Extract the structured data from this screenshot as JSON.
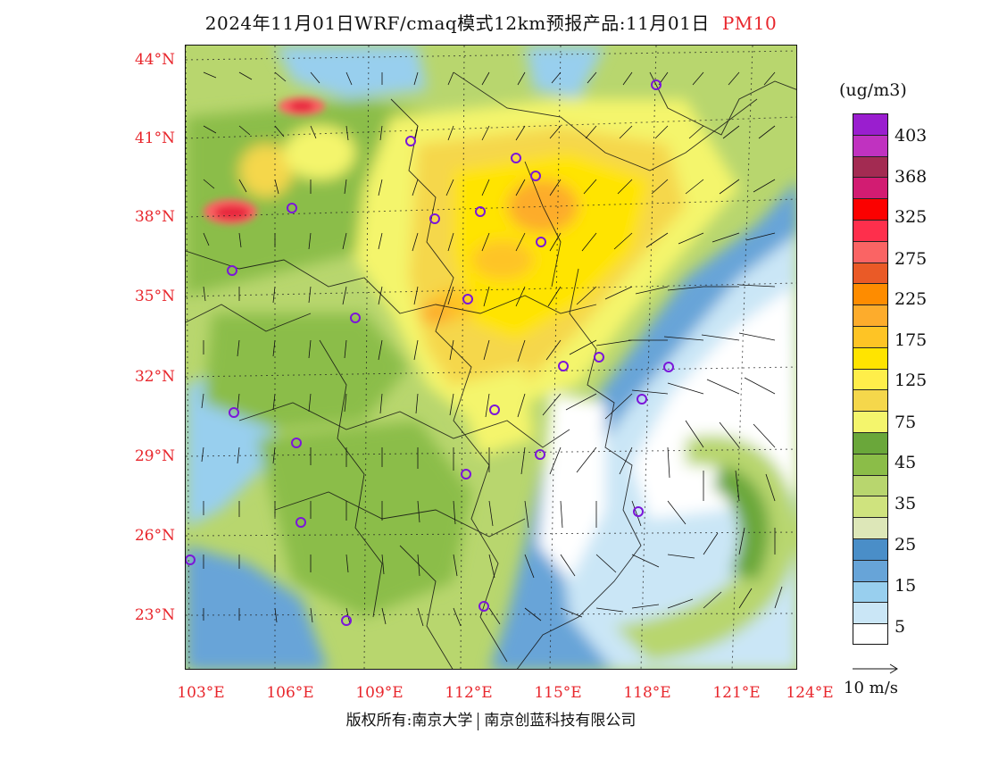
{
  "title": {
    "main": "2024年11月01日WRF/cmaq模式12km预报产品:11月01日",
    "variable": "PM10"
  },
  "map": {
    "lat_labels": [
      "44°N",
      "41°N",
      "38°N",
      "35°N",
      "32°N",
      "29°N",
      "26°N",
      "23°N"
    ],
    "lon_labels": [
      "103°E",
      "106°E",
      "109°E",
      "112°E",
      "115°E",
      "118°E",
      "121°E",
      "124°E"
    ]
  },
  "legend": {
    "unit": "(ug/m3)",
    "colors": [
      "#9a1ecf",
      "#c032c0",
      "#a32b52",
      "#d21c72",
      "#fb0100",
      "#fe2f4c",
      "#fa6464",
      "#ea5a27",
      "#fe8c00",
      "#fdac2c",
      "#fec425",
      "#ffe400",
      "#ffee4a",
      "#f5d74b",
      "#f4f56c",
      "#6aa73a",
      "#8bbd48",
      "#b8d66e",
      "#cfe37e",
      "#dde7b8",
      "#4a8ec8",
      "#67a4d8",
      "#98cfee",
      "#cae6f6",
      "#ffffff"
    ],
    "ticks": [
      "403",
      "368",
      "325",
      "275",
      "225",
      "175",
      "125",
      "75",
      "45",
      "35",
      "25",
      "15",
      "5"
    ],
    "reference_vector": "10 m/s"
  },
  "copyright": {
    "left": "版权所有:南京大学",
    "right": "南京创蓝科技有限公司"
  }
}
